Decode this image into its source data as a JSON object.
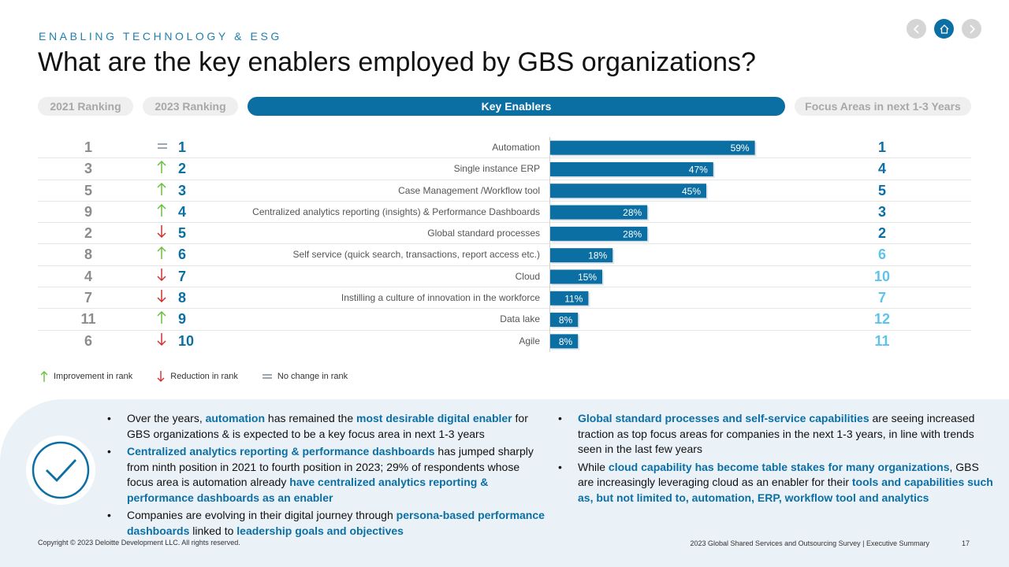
{
  "header": {
    "eyebrow": "ENABLING TECHNOLOGY & ESG",
    "title": "What are the key enablers employed by GBS organizations?"
  },
  "nav": {
    "prev_icon": "chevron-left-icon",
    "home_icon": "home-icon",
    "next_icon": "chevron-right-icon"
  },
  "columns": {
    "ranking_2021": "2021 Ranking",
    "ranking_2023": "2023 Ranking",
    "key_enablers": "Key Enablers",
    "focus_areas": "Focus Areas in next 1-3 Years"
  },
  "colors": {
    "bar": "#0b6fa4",
    "focus_dark": "#0b6fa4",
    "focus_light": "#5ec3ea",
    "up": "#6abf3c",
    "down": "#d0312d",
    "same": "#7a8a9a"
  },
  "chart_data": {
    "type": "bar",
    "orientation": "horizontal",
    "categories": [
      "Automation",
      "Single instance ERP",
      "Case Management /Workflow tool",
      "Centralized analytics reporting (insights) & Performance Dashboards",
      "Global standard processes",
      "Self service (quick search, transactions, report access etc.)",
      "Cloud",
      "Instilling a culture of innovation in the workforce",
      "Data lake",
      "Agile"
    ],
    "values": [
      59,
      47,
      45,
      28,
      28,
      18,
      15,
      11,
      8,
      8
    ],
    "value_labels": [
      "59%",
      "47%",
      "45%",
      "28%",
      "28%",
      "18%",
      "15%",
      "11%",
      "8%",
      "8%"
    ],
    "value_unit": "%",
    "xlim": [
      0,
      100
    ],
    "ranking_2021": [
      "1",
      "3",
      "5",
      "9",
      "2",
      "8",
      "4",
      "7",
      "11",
      "6"
    ],
    "ranking_2023": [
      "1",
      "2",
      "3",
      "4",
      "5",
      "6",
      "7",
      "8",
      "9",
      "10"
    ],
    "rank_change": [
      "same",
      "up",
      "up",
      "up",
      "down",
      "up",
      "down",
      "down",
      "up",
      "down"
    ],
    "focus_areas": [
      "1",
      "4",
      "5",
      "3",
      "2",
      "6",
      "10",
      "7",
      "12",
      "11"
    ],
    "focus_highlight": [
      "dark",
      "dark",
      "dark",
      "dark",
      "dark",
      "light",
      "light",
      "light",
      "light",
      "light"
    ]
  },
  "legend": {
    "up": "Improvement in rank",
    "down": "Reduction in rank",
    "same": "No change in rank"
  },
  "insights": {
    "left": [
      [
        {
          "t": "Over the years, ",
          "h": false
        },
        {
          "t": "automation",
          "h": true
        },
        {
          "t": " has remained the ",
          "h": false
        },
        {
          "t": "most desirable digital enabler",
          "h": true
        },
        {
          "t": " for GBS organizations & is expected to be a key focus area in next 1-3 years",
          "h": false
        }
      ],
      [
        {
          "t": "Centralized analytics reporting & performance dashboards",
          "h": true
        },
        {
          "t": " has jumped sharply from ninth position in 2021 to fourth position in 2023; 29% of respondents whose focus area is automation already ",
          "h": false
        },
        {
          "t": "have centralized analytics reporting & performance dashboards as an enabler",
          "h": true
        }
      ],
      [
        {
          "t": "Companies are evolving in their digital journey through ",
          "h": false
        },
        {
          "t": "persona-based performance dashboards",
          "h": true
        },
        {
          "t": " linked to ",
          "h": false
        },
        {
          "t": "leadership goals and objectives",
          "h": true
        }
      ]
    ],
    "right": [
      [
        {
          "t": "Global standard processes and self-service capabilities",
          "h": true
        },
        {
          "t": " are seeing increased traction as top focus areas for companies in the next 1-3 years, in line with trends seen in the last few years",
          "h": false
        }
      ],
      [
        {
          "t": "While ",
          "h": false
        },
        {
          "t": "cloud capability has become table stakes for many organizations",
          "h": true
        },
        {
          "t": ", GBS are increasingly leveraging cloud as an enabler for their ",
          "h": false
        },
        {
          "t": "tools and capabilities such as, but not limited to, automation, ERP, workflow tool and analytics",
          "h": true
        }
      ]
    ]
  },
  "footer": {
    "copyright": "Copyright © 2023 Deloitte Development LLC. All rights reserved.",
    "report": "2023 Global Shared Services and Outsourcing Survey | Executive Summary",
    "page": "17"
  }
}
